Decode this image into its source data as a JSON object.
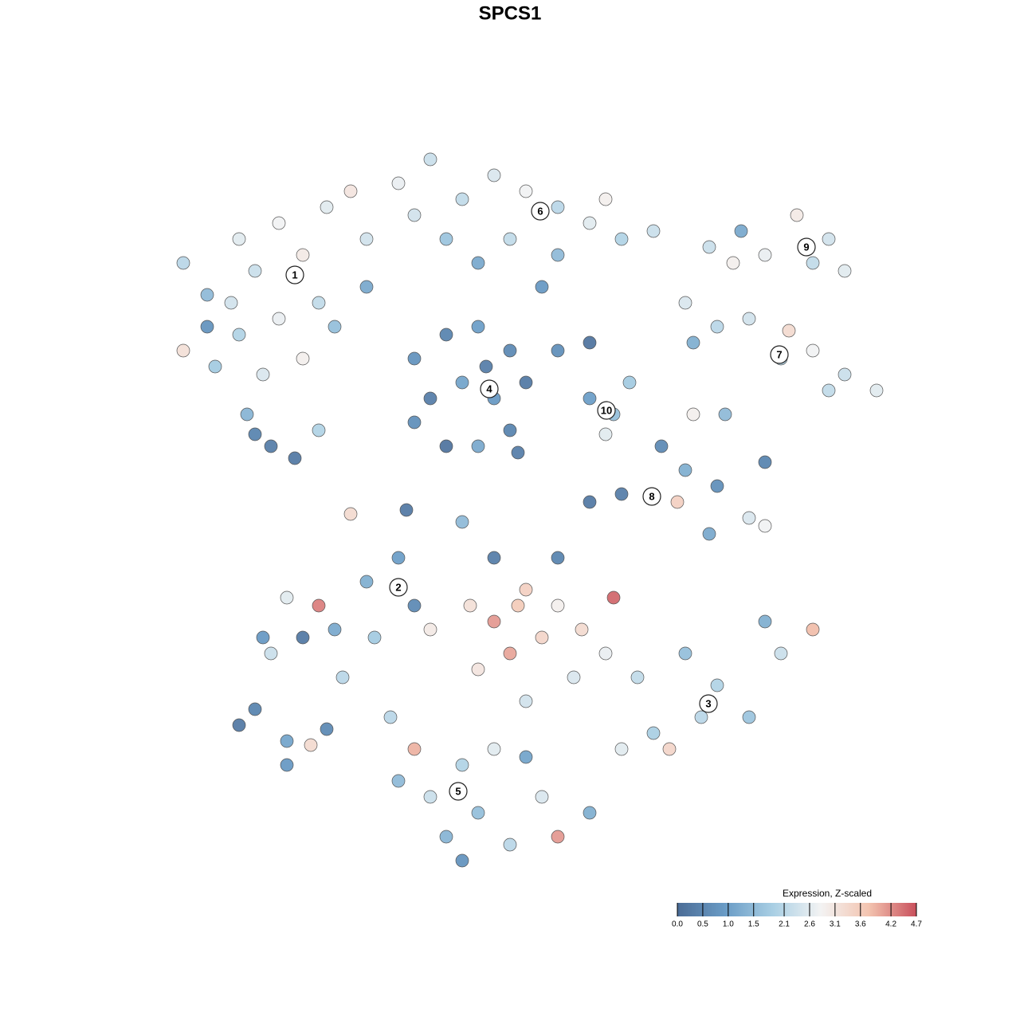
{
  "chart_data": {
    "type": "scatter",
    "title": "SPCS1",
    "xlim": [
      19,
      114
    ],
    "ylim": [
      18,
      110
    ],
    "x": [
      23,
      26,
      30,
      32,
      35,
      38,
      41,
      44,
      46,
      40,
      35,
      30,
      27,
      33,
      38,
      42,
      23,
      31,
      34,
      37,
      32,
      40,
      26,
      46,
      29,
      50,
      54,
      58,
      62,
      66,
      70,
      74,
      78,
      82,
      56,
      64,
      70,
      76,
      52,
      60,
      68,
      52,
      56,
      60,
      64,
      66,
      62,
      58,
      54,
      52,
      56,
      60,
      64,
      61,
      70,
      74,
      89,
      93,
      96,
      100,
      104,
      106,
      102,
      92,
      86,
      90,
      94,
      98,
      102,
      106,
      110,
      104,
      87,
      99,
      74,
      77,
      76,
      79,
      83,
      86,
      90,
      94,
      96,
      89,
      78,
      74,
      85,
      87,
      91,
      96,
      36,
      40,
      38,
      42,
      34,
      46,
      50,
      52,
      43,
      47,
      33,
      59,
      62,
      65,
      68,
      64,
      60,
      70,
      73,
      77,
      76,
      72,
      66,
      80,
      86,
      90,
      94,
      98,
      102,
      96,
      88,
      82,
      78,
      84,
      70,
      62,
      66,
      54,
      49,
      52,
      50,
      54,
      58,
      62,
      66,
      60,
      64,
      70,
      74,
      68,
      56,
      58,
      30,
      32,
      36,
      39,
      36,
      41,
      44,
      51,
      58,
      65
    ],
    "y": [
      95,
      91,
      98,
      94,
      100,
      96,
      102,
      104,
      98,
      90,
      88,
      86,
      82,
      81,
      83,
      87,
      84,
      76,
      72,
      70.5,
      73.5,
      74,
      87,
      92,
      90,
      105,
      108,
      103,
      106,
      104,
      102,
      100,
      98,
      99,
      98,
      98,
      96,
      103,
      101,
      95,
      92,
      83,
      86,
      87,
      84,
      80,
      78,
      80,
      78,
      75,
      72,
      72,
      74,
      82,
      84,
      85,
      97,
      99,
      96,
      101,
      98,
      94,
      95,
      95,
      90,
      87,
      88,
      83,
      84,
      81,
      79,
      79,
      85,
      86.5,
      78,
      76,
      73.5,
      80,
      72,
      69,
      67,
      63,
      62,
      61,
      66,
      65,
      65,
      76,
      76,
      70,
      53,
      52,
      48,
      49,
      46,
      55,
      58,
      52,
      43,
      48,
      48,
      52,
      50,
      52,
      48,
      46,
      44,
      52,
      49,
      53,
      46,
      43,
      40,
      43,
      46,
      42,
      38,
      46,
      49,
      50,
      38,
      36,
      34,
      34,
      58,
      58,
      54,
      49,
      38,
      34,
      30,
      28,
      32,
      34,
      33,
      26,
      22,
      23,
      26,
      28,
      23,
      20,
      37,
      39,
      35,
      34.5,
      32,
      36.5,
      63.5,
      64,
      62.5,
      71.2
    ],
    "values": [
      2.1,
      1.5,
      2.6,
      2.3,
      2.8,
      3.0,
      2.6,
      3.1,
      2.4,
      2.2,
      2.7,
      2.0,
      1.8,
      2.5,
      2.9,
      1.6,
      3.2,
      1.4,
      0.4,
      0.3,
      0.5,
      2.0,
      0.8,
      1.2,
      2.4,
      2.7,
      2.3,
      2.2,
      2.5,
      2.8,
      2.1,
      2.6,
      2.0,
      2.3,
      1.7,
      2.2,
      1.5,
      2.9,
      2.4,
      1.2,
      0.9,
      0.8,
      0.5,
      1.0,
      0.6,
      0.3,
      0.9,
      1.1,
      0.4,
      0.7,
      0.2,
      1.2,
      0.5,
      0.4,
      0.7,
      0.2,
      2.3,
      1.2,
      2.7,
      3.0,
      2.4,
      2.6,
      2.2,
      2.9,
      2.5,
      2.1,
      2.4,
      2.0,
      2.8,
      2.3,
      2.6,
      2.2,
      1.3,
      3.3,
      1.0,
      1.6,
      2.6,
      1.8,
      0.6,
      1.3,
      0.7,
      2.5,
      2.8,
      1.2,
      0.4,
      0.3,
      3.5,
      2.9,
      1.5,
      0.5,
      2.6,
      4.3,
      0.3,
      1.2,
      2.3,
      1.3,
      1.0,
      0.6,
      2.1,
      1.8,
      0.9,
      3.2,
      4.1,
      3.6,
      3.4,
      4.0,
      3.1,
      2.9,
      3.3,
      4.5,
      2.7,
      2.5,
      2.4,
      2.2,
      1.6,
      2.0,
      1.7,
      2.3,
      3.8,
      1.3,
      2.1,
      1.9,
      2.6,
      3.4,
      0.5,
      0.4,
      3.5,
      3.0,
      2.1,
      3.9,
      1.5,
      2.3,
      2.0,
      2.6,
      1.1,
      1.6,
      2.1,
      4.1,
      1.3,
      2.5,
      1.4,
      0.8,
      0.3,
      0.5,
      1.1,
      3.3,
      0.9,
      0.6,
      3.3,
      0.3,
      1.5,
      0.4
    ],
    "clusters": {
      "labels": [
        "1",
        "6",
        "9",
        "7",
        "4",
        "10",
        "8",
        "2",
        "3",
        "5"
      ],
      "x": [
        37,
        67.8,
        101.2,
        97.8,
        61.4,
        76.1,
        81.8,
        50,
        88.9,
        57.5
      ],
      "y": [
        93.5,
        101.5,
        97,
        83.5,
        79.2,
        76.5,
        65.7,
        54.3,
        39.7,
        28.7
      ]
    },
    "colorbar": {
      "title": "Expression, Z-scaled",
      "lim": [
        0,
        4.7
      ],
      "ticks": [
        {
          "value": 0,
          "label": "0.0"
        },
        0.5,
        {
          "value": 1,
          "label": "1.0"
        },
        1.5,
        2.1,
        2.6,
        3.1,
        3.6,
        4.2,
        4.7
      ],
      "colors": [
        "#4b6c96",
        "#6a9cc6",
        "#a9cfe4",
        "#f3f3f3",
        "#f3c4b0",
        "#c9505c"
      ]
    }
  }
}
